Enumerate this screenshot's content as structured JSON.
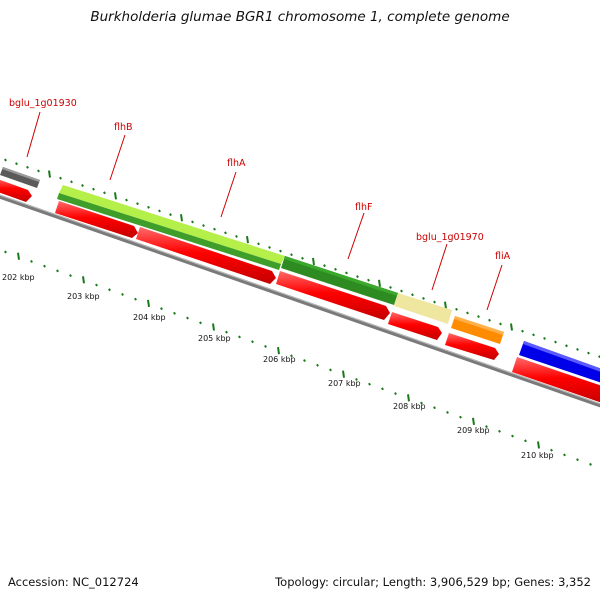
{
  "header": {
    "title": "Burkholderia glumae BGR1 chromosome 1, complete genome"
  },
  "footer": {
    "accession": "Accession: NC_012724",
    "summary": "Topology: circular; Length: 3,906,529 bp; Genes: 3,352"
  },
  "scale": {
    "labels": [
      "202 kbp",
      "203 kbp",
      "204 kbp",
      "205 kbp",
      "206 kbp",
      "207 kbp",
      "208 kbp",
      "209 kbp",
      "210 kbp"
    ]
  },
  "genes": [
    {
      "name": "bglu_1g01930",
      "color": "#666666"
    },
    {
      "name": "flhB",
      "color": "#7ac943"
    },
    {
      "name": "flhA",
      "color": "#c7f05a"
    },
    {
      "name": "flhF",
      "color": "#228b22"
    },
    {
      "name": "bglu_1g01970",
      "color": "#eee8aa"
    },
    {
      "name": "fliA",
      "color": "#ff8c00"
    },
    {
      "name": "",
      "color": "#0000e0"
    }
  ],
  "colors": {
    "cds": "#ff0000",
    "backbone": "#808080",
    "ticks": "#1a7a1a",
    "labels": "#cc0000"
  }
}
